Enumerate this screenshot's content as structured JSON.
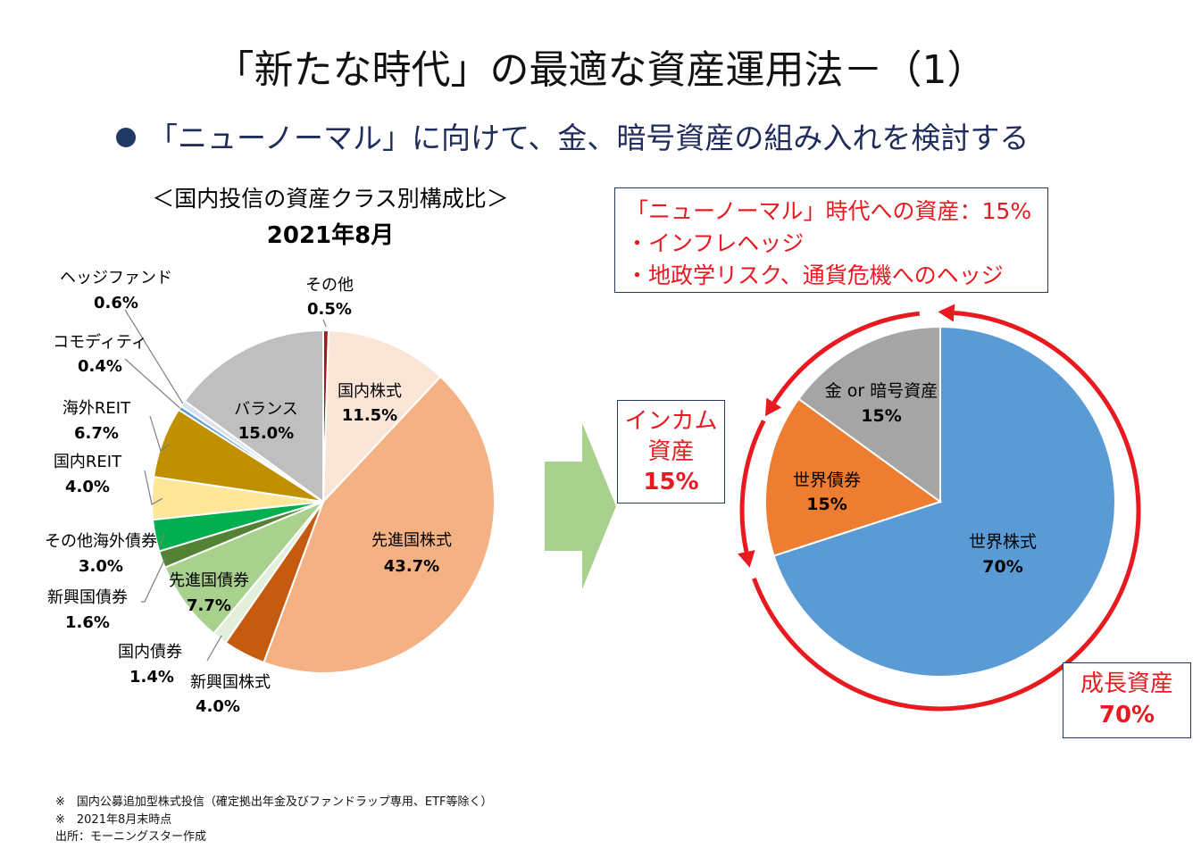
{
  "header": {
    "title": "「新たな時代」の最適な資産運用法－（1）",
    "subtitle": "「ニューノーマル」に向けて、金、暗号資産の組み入れを検討する"
  },
  "left_panel": {
    "title": "＜国内投信の資産クラス別構成比＞",
    "date": "2021年8月"
  },
  "right_panel": {
    "note_lines": [
      "「ニューノーマル」時代への資産：15%",
      "・インフレヘッジ",
      "・地政学リスク、通貨危機へのヘッジ"
    ],
    "income_label": [
      "インカム",
      "資産",
      "15%"
    ],
    "growth_label": [
      "成長資産",
      "70%"
    ]
  },
  "footnotes": [
    "※　国内公募追加型株式投信（確定拠出年金及びファンドラップ専用、ETF等除く）",
    "※　2021年8月末時点",
    "出所：モーニングスター作成"
  ],
  "colors": {
    "title_accent": "#1f3864",
    "red": "#e8191f",
    "arrow_green": "#a9d18e"
  },
  "chart_data": [
    {
      "type": "pie",
      "series": [
        {
          "label": "その他",
          "value": 0.5,
          "color": "#9e1b1b"
        },
        {
          "label": "国内株式",
          "value": 11.5,
          "color": "#fbe5d6"
        },
        {
          "label": "先進国株式",
          "value": 43.7,
          "color": "#f4b183"
        },
        {
          "label": "新興国株式",
          "value": 4.0,
          "color": "#c55a11"
        },
        {
          "label": "国内債券",
          "value": 1.4,
          "color": "#e2efda"
        },
        {
          "label": "先進国債券",
          "value": 7.7,
          "color": "#a9d18e"
        },
        {
          "label": "新興国債券",
          "value": 1.6,
          "color": "#548235"
        },
        {
          "label": "その他海外債券",
          "value": 3.0,
          "color": "#00b050"
        },
        {
          "label": "国内REIT",
          "value": 4.0,
          "color": "#ffe699"
        },
        {
          "label": "海外REIT",
          "value": 6.7,
          "color": "#bf9000"
        },
        {
          "label": "コモディティ",
          "value": 0.4,
          "color": "#5b9bd5"
        },
        {
          "label": "ヘッジファンド",
          "value": 0.6,
          "color": "#dae3f3"
        },
        {
          "label": "バランス",
          "value": 15.0,
          "color": "#bfbfbf"
        }
      ],
      "value_labels": [
        "0.5%",
        "11.5%",
        "43.7%",
        "4.0%",
        "1.4%",
        "7.7%",
        "1.6%",
        "3.0%",
        "4.0%",
        "6.7%",
        "0.4%",
        "0.6%",
        "15.0%"
      ]
    },
    {
      "type": "pie",
      "series": [
        {
          "label": "世界株式",
          "value": 70,
          "color": "#5b9bd5"
        },
        {
          "label": "世界債券",
          "value": 15,
          "color": "#ed7d31"
        },
        {
          "label": "金 or 暗号資産",
          "value": 15,
          "color": "#a5a5a5"
        }
      ],
      "value_labels": [
        "70%",
        "15%",
        "15%"
      ]
    }
  ]
}
